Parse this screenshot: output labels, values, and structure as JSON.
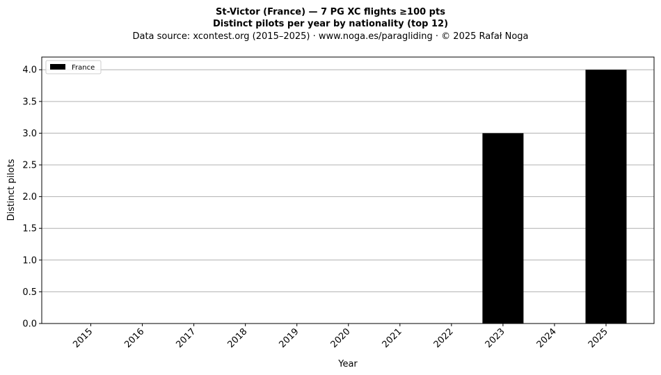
{
  "chart_data": {
    "type": "bar",
    "title": "St-Victor (France)  —  7 PG XC flights ≥100 pts",
    "subtitle": "Distinct pilots per year by nationality (top 12)",
    "source": "Data source: xcontest.org (2015–2025)  ·  www.noga.es/paragliding  ·  © 2025 Rafał Noga",
    "xlabel": "Year",
    "ylabel": "Distinct pilots",
    "categories": [
      "2015",
      "2016",
      "2017",
      "2018",
      "2019",
      "2020",
      "2021",
      "2022",
      "2023",
      "2024",
      "2025"
    ],
    "series": [
      {
        "name": "France",
        "color": "#000000",
        "values": [
          0,
          0,
          0,
          0,
          0,
          0,
          0,
          0,
          3,
          0,
          4
        ]
      }
    ],
    "ylim": [
      0,
      4.2
    ],
    "yticks": [
      "0.0",
      "0.5",
      "1.0",
      "1.5",
      "2.0",
      "2.5",
      "3.0",
      "3.5",
      "4.0"
    ],
    "grid": "y",
    "grid_color": "#b0b0b0",
    "legend": "top-left"
  }
}
